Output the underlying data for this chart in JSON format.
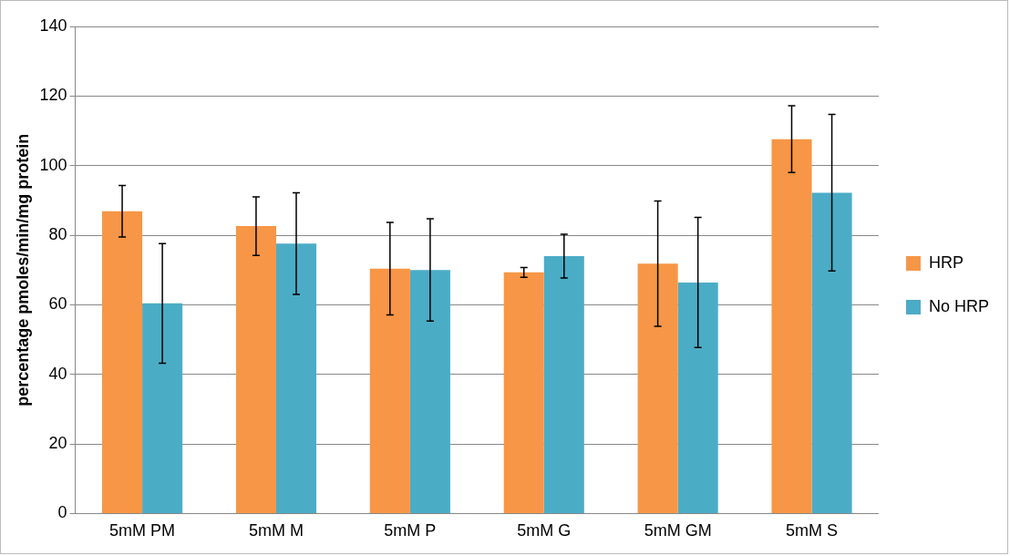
{
  "chart_data": {
    "type": "bar",
    "ylabel": "percentage pmoles/min/mg protein",
    "categories": [
      "5mM PM",
      "5mM M",
      "5mM P",
      "5mM G",
      "5mM GM",
      "5mM S"
    ],
    "series": [
      {
        "name": "HRP",
        "color": "#f79646",
        "values": [
          86.9,
          82.6,
          70.4,
          69.3,
          71.8,
          107.6
        ],
        "errors": [
          7.4,
          8.4,
          13.3,
          1.4,
          18,
          9.6
        ]
      },
      {
        "name": "No HRP",
        "color": "#4bacc6",
        "values": [
          60.4,
          77.6,
          70,
          74,
          66.4,
          92.2
        ],
        "errors": [
          17.2,
          14.6,
          14.7,
          6.3,
          18.7,
          22.5
        ]
      }
    ],
    "ylim": [
      0,
      140
    ],
    "yticks": [
      0,
      20,
      40,
      60,
      80,
      100,
      120,
      140
    ],
    "grid": "y",
    "legend": "right"
  }
}
